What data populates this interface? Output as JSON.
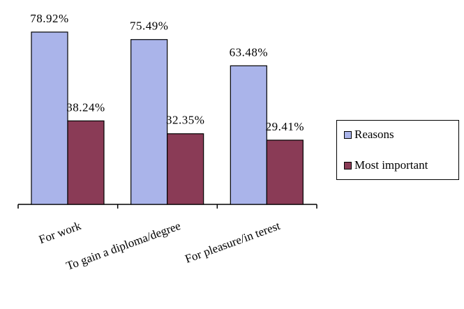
{
  "chart_data": {
    "type": "bar",
    "categories": [
      "For work",
      "To gain a diploma/degree",
      "For pleasure/in terest"
    ],
    "series": [
      {
        "name": "Reasons",
        "values": [
          78.92,
          75.49,
          63.48
        ],
        "labels": [
          "78.92%",
          "75.49%",
          "63.48%"
        ],
        "color": "#aab4ea"
      },
      {
        "name": "Most important",
        "values": [
          38.24,
          32.35,
          29.41
        ],
        "labels": [
          "38.24%",
          "32.35%",
          "29.41%"
        ],
        "color": "#8a3b56"
      }
    ],
    "ylim": [
      0,
      80
    ],
    "grid": false,
    "legend_position": "right"
  }
}
